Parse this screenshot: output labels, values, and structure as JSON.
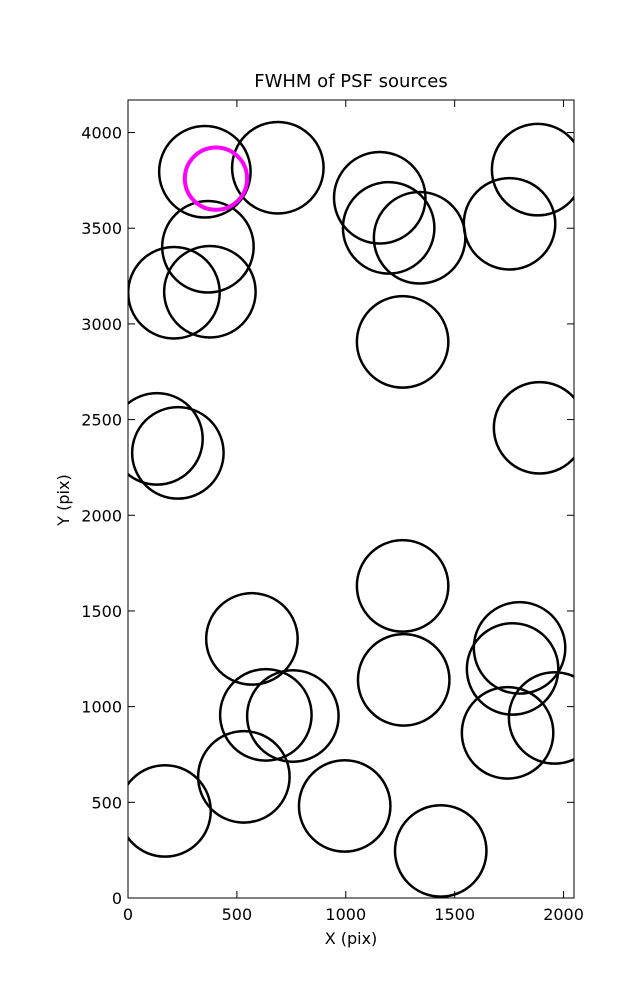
{
  "chart_data": {
    "type": "scatter",
    "title": "FWHM of PSF sources",
    "x_label": "X (pix)",
    "y_label": "Y (pix)",
    "xlim": [
      0,
      2048
    ],
    "ylim": [
      0,
      4170
    ],
    "xticks": [
      0,
      500,
      1000,
      1500,
      2000
    ],
    "yticks": [
      0,
      500,
      1000,
      1500,
      2000,
      2500,
      3000,
      3500,
      4000
    ],
    "series": [
      {
        "color": "#000000",
        "x": [
          353,
          688,
          367,
          211,
          376,
          1156,
          1197,
          1339,
          1881,
          1752,
          1261,
          1890,
          133,
          229,
          1261,
          569,
          633,
          757,
          1266,
          1798,
          1766,
          532,
          1743,
          1959,
          170,
          995,
          1436
        ],
        "y": [
          3795,
          3816,
          3403,
          3163,
          3168,
          3659,
          3502,
          3450,
          3806,
          3523,
          2906,
          2457,
          2399,
          2326,
          1631,
          1354,
          957,
          951,
          1140,
          1307,
          1197,
          633,
          863,
          941,
          455,
          481,
          246
        ],
        "sizes": [
          210,
          210,
          210,
          210,
          210,
          210,
          210,
          210,
          210,
          210,
          210,
          210,
          210,
          210,
          210,
          210,
          210,
          210,
          210,
          210,
          210,
          210,
          210,
          210,
          210,
          210,
          210
        ]
      },
      {
        "color": "#ff00ff",
        "x": [
          404
        ],
        "y": [
          3759
        ],
        "sizes": [
          143
        ]
      }
    ]
  }
}
